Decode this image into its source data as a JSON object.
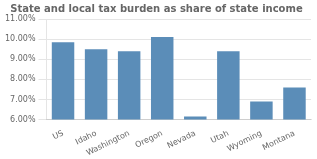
{
  "chart_data": {
    "type": "bar",
    "title": "State and local tax burden as share of state income",
    "categories": [
      "US",
      "Idaho",
      "Washington",
      "Oregon",
      "Nevada",
      "Utah",
      "Wyoming",
      "Montana"
    ],
    "values": [
      0.0985,
      0.095,
      0.094,
      0.101,
      0.0615,
      0.094,
      0.069,
      0.076
    ],
    "color": "#5b8db8",
    "ylim": [
      0.06,
      0.11
    ],
    "yticks": [
      {
        "value": 0.06,
        "label": "6.00%"
      },
      {
        "value": 0.07,
        "label": "7.00%"
      },
      {
        "value": 0.08,
        "label": "8.00%"
      },
      {
        "value": 0.09,
        "label": "9.00%"
      },
      {
        "value": 0.1,
        "label": "10.00%"
      },
      {
        "value": 0.11,
        "label": "11.00%"
      }
    ],
    "grid": true
  }
}
